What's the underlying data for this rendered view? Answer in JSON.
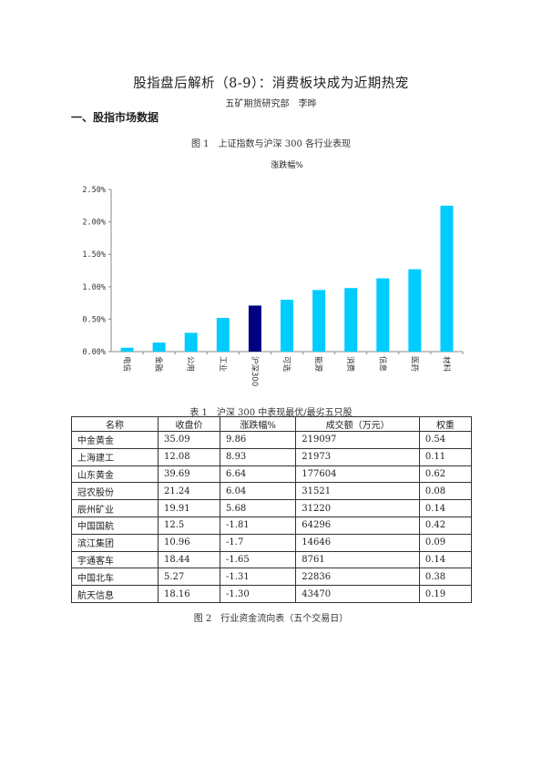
{
  "document": {
    "title": "股指盘后解析（8-9）：消费板块成为近期热宠",
    "subtitle": "五矿期货研究部　李晔",
    "section_heading": "一、股指市场数据",
    "figure1_caption": "图 1　上证指数与沪深 300 各行业表现",
    "table1_caption": "表 1　沪深 300 中表现最优/最劣五只股",
    "figure2_caption": "图 2　行业资金流向表（五个交易日）"
  },
  "colors": {
    "bar_default": "#00CCFF",
    "bar_highlight": "#000080",
    "axis": "#888888"
  },
  "chart_data": {
    "type": "bar",
    "title": "涨跌幅%",
    "categories": [
      "电信",
      "金融",
      "公用",
      "工业",
      "沪深300",
      "可选",
      "能源",
      "消费",
      "信息",
      "医药",
      "材料"
    ],
    "values": [
      0.06,
      0.14,
      0.29,
      0.52,
      0.71,
      0.8,
      0.95,
      0.98,
      1.13,
      1.27,
      2.25
    ],
    "highlight_category": "沪深300",
    "ylim": [
      0,
      2.5
    ],
    "yticks": [
      "0.00%",
      "0.50%",
      "1.00%",
      "1.50%",
      "2.00%",
      "2.50%"
    ],
    "ytick_values": [
      0,
      0.5,
      1.0,
      1.5,
      2.0,
      2.5
    ],
    "grid": false,
    "legend": "none"
  },
  "table1": {
    "headers": [
      "名称",
      "收盘价",
      "涨跌幅%",
      "成交额（万元）",
      "权重"
    ],
    "rows": [
      [
        "中金黄金",
        "35.09",
        "9.86",
        "219097",
        "0.54"
      ],
      [
        "上海建工",
        "12.08",
        "8.93",
        "21973",
        "0.11"
      ],
      [
        "山东黄金",
        "39.69",
        "6.64",
        "177604",
        "0.62"
      ],
      [
        "冠农股份",
        "21.24",
        "6.04",
        "31521",
        "0.08"
      ],
      [
        "辰州矿业",
        "19.91",
        "5.68",
        "31220",
        "0.14"
      ],
      [
        "中国国航",
        "12.5",
        "-1.81",
        "64296",
        "0.42"
      ],
      [
        "滨江集团",
        "10.96",
        "-1.7",
        "14646",
        "0.09"
      ],
      [
        "宇通客车",
        "18.44",
        "-1.65",
        "8761",
        "0.14"
      ],
      [
        "中国北车",
        "5.27",
        "-1.31",
        "22836",
        "0.38"
      ],
      [
        "航天信息",
        "18.16",
        "-1.30",
        "43470",
        "0.19"
      ]
    ]
  }
}
